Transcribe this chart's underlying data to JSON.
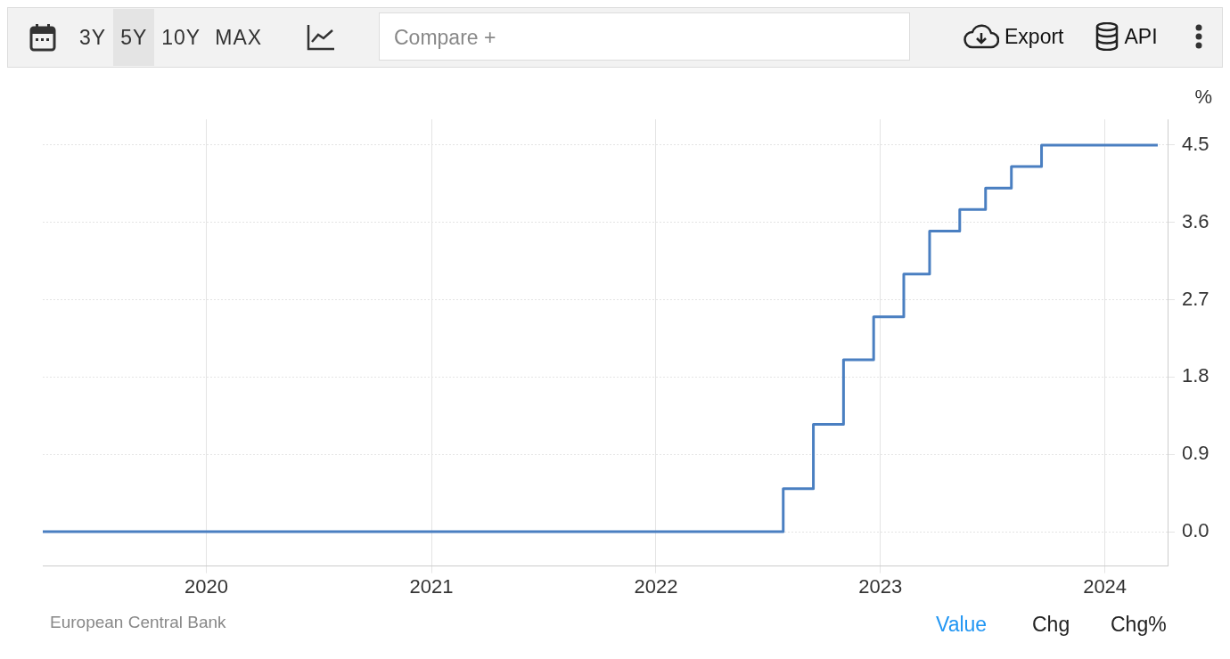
{
  "chart_data": {
    "type": "step",
    "ylabel": "%",
    "x": [
      "2019-04-10",
      "2022-07-27",
      "2022-09-14",
      "2022-11-02",
      "2022-12-21",
      "2023-02-08",
      "2023-03-22",
      "2023-05-10",
      "2023-06-21",
      "2023-08-02",
      "2023-09-20",
      "2024-03-27"
    ],
    "values": [
      0,
      0.5,
      1.25,
      2.0,
      2.5,
      3.0,
      3.5,
      3.75,
      4.0,
      4.25,
      4.5,
      4.5
    ],
    "color": "#4a7fc1",
    "xlim": [
      "2019-04-10",
      "2024-04-12"
    ],
    "xticks": [
      "2020",
      "2021",
      "2022",
      "2023",
      "2024"
    ],
    "ylim": [
      -0.4,
      4.8
    ],
    "yticks": [
      {
        "value": 0,
        "label": "0.0"
      },
      {
        "value": 0.9,
        "label": "0.9"
      },
      {
        "value": 1.8,
        "label": "1.8"
      },
      {
        "value": 2.7,
        "label": "2.7"
      },
      {
        "value": 3.6,
        "label": "3.6"
      },
      {
        "value": 4.5,
        "label": "4.5"
      }
    ],
    "grid": true,
    "annotations": [
      "3Y",
      "5Y",
      "10Y",
      "MAX",
      "Compare +",
      "Export",
      "API",
      "European Central Bank",
      "Value",
      "Chg",
      "Chg%"
    ]
  }
}
